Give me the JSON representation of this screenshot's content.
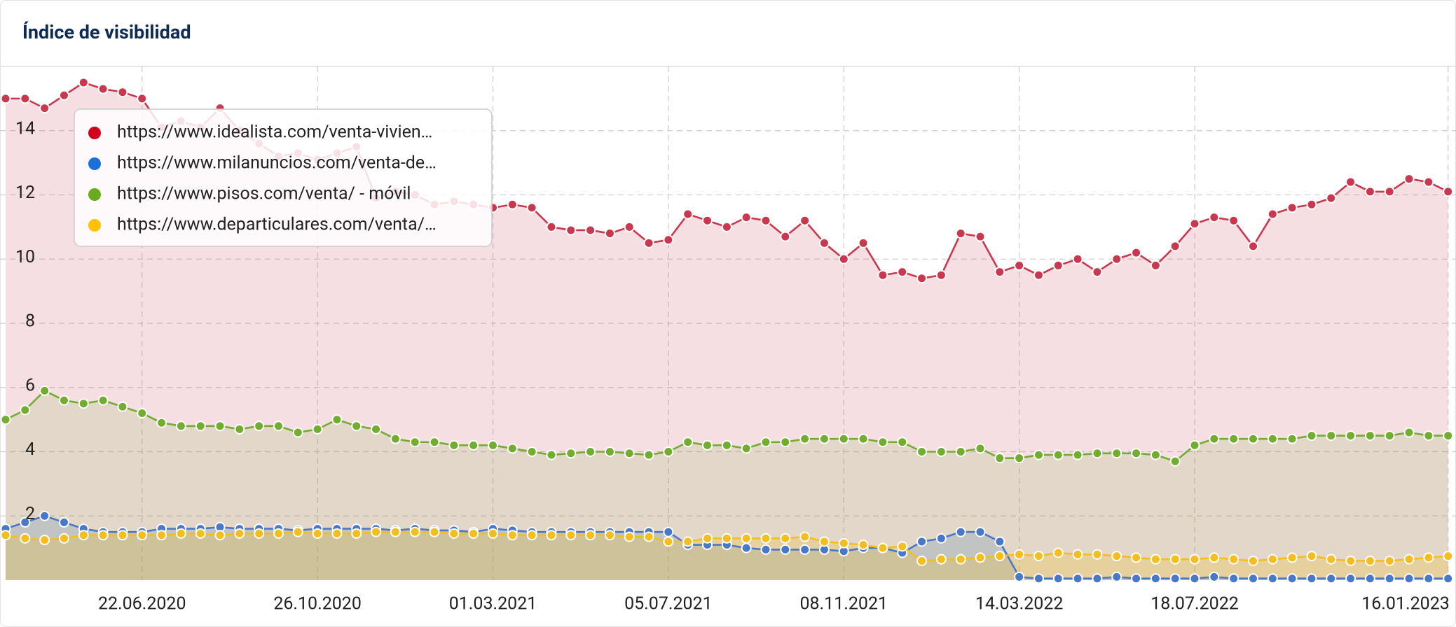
{
  "chart_data": {
    "type": "line",
    "title": "Índice de visibilidad",
    "area": true,
    "markers": true,
    "grid": true,
    "legend": "top-left",
    "categories": [
      null,
      null,
      null,
      null,
      null,
      null,
      null,
      "22.06.2020",
      null,
      null,
      null,
      null,
      null,
      null,
      null,
      null,
      "26.10.2020",
      null,
      null,
      null,
      null,
      null,
      null,
      null,
      null,
      "01.03.2021",
      null,
      null,
      null,
      null,
      null,
      null,
      null,
      null,
      "05.07.2021",
      null,
      null,
      null,
      null,
      null,
      null,
      null,
      null,
      "08.11.2021",
      null,
      null,
      null,
      null,
      null,
      null,
      null,
      null,
      "14.03.2022",
      null,
      null,
      null,
      null,
      null,
      null,
      null,
      null,
      "18.07.2022",
      null,
      null,
      null,
      null,
      null,
      null,
      null,
      null,
      null,
      null,
      null,
      null,
      "16.01.2023"
    ],
    "ylim": [
      0,
      16
    ],
    "yticks": [
      2,
      4,
      6,
      8,
      10,
      12,
      14
    ],
    "series": [
      {
        "name": "https://www.idealista.com/venta-vivien…",
        "color": "#c9384f",
        "values": [
          15.0,
          15.0,
          14.7,
          15.1,
          15.5,
          15.3,
          15.2,
          15.0,
          14.1,
          14.3,
          14.1,
          14.7,
          14.0,
          13.6,
          13.2,
          13.3,
          13.1,
          13.3,
          13.5,
          11.9,
          12.1,
          12.0,
          11.7,
          11.8,
          11.7,
          11.6,
          11.7,
          11.6,
          11.0,
          10.9,
          10.9,
          10.8,
          11.0,
          10.5,
          10.6,
          11.4,
          11.2,
          11.0,
          11.3,
          11.2,
          10.7,
          11.2,
          10.5,
          10.0,
          10.5,
          9.5,
          9.6,
          9.4,
          9.5,
          10.8,
          10.7,
          9.6,
          9.8,
          9.5,
          9.8,
          10.0,
          9.6,
          10.0,
          10.2,
          9.8,
          10.4,
          11.1,
          11.3,
          11.2,
          10.4,
          11.4,
          11.6,
          11.7,
          11.9,
          12.4,
          12.1,
          12.1,
          12.5,
          12.4,
          12.1
        ]
      },
      {
        "name": "https://www.milanuncios.com/venta-de…",
        "color": "#4a78c8",
        "values": [
          1.6,
          1.8,
          2.0,
          1.8,
          1.6,
          1.5,
          1.5,
          1.5,
          1.6,
          1.6,
          1.6,
          1.65,
          1.6,
          1.6,
          1.6,
          1.55,
          1.6,
          1.6,
          1.6,
          1.6,
          1.55,
          1.6,
          1.55,
          1.55,
          1.5,
          1.6,
          1.55,
          1.5,
          1.5,
          1.5,
          1.5,
          1.5,
          1.5,
          1.5,
          1.5,
          1.1,
          1.1,
          1.1,
          1.0,
          0.95,
          0.95,
          0.95,
          0.95,
          0.9,
          1.0,
          1.0,
          0.85,
          1.2,
          1.3,
          1.5,
          1.5,
          1.2,
          0.1,
          0.05,
          0.05,
          0.05,
          0.05,
          0.1,
          0.05,
          0.05,
          0.05,
          0.05,
          0.1,
          0.05,
          0.05,
          0.05,
          0.05,
          0.05,
          0.05,
          0.05,
          0.05,
          0.05,
          0.05,
          0.05,
          0.05
        ]
      },
      {
        "name": "https://www.pisos.com/venta/ - móvil",
        "color": "#72ad2f",
        "values": [
          5.0,
          5.3,
          5.9,
          5.6,
          5.5,
          5.6,
          5.4,
          5.2,
          4.9,
          4.8,
          4.8,
          4.8,
          4.7,
          4.8,
          4.8,
          4.6,
          4.7,
          5.0,
          4.8,
          4.7,
          4.4,
          4.3,
          4.3,
          4.2,
          4.2,
          4.2,
          4.1,
          4.0,
          3.9,
          3.95,
          4.0,
          4.0,
          3.95,
          3.9,
          4.0,
          4.3,
          4.2,
          4.2,
          4.1,
          4.3,
          4.3,
          4.4,
          4.4,
          4.4,
          4.4,
          4.3,
          4.3,
          4.0,
          4.0,
          4.0,
          4.1,
          3.8,
          3.8,
          3.9,
          3.9,
          3.9,
          3.95,
          3.95,
          3.95,
          3.9,
          3.7,
          4.2,
          4.4,
          4.4,
          4.4,
          4.4,
          4.4,
          4.5,
          4.5,
          4.5,
          4.5,
          4.5,
          4.6,
          4.5,
          4.5
        ]
      },
      {
        "name": "https://www.departiculares.com/venta/…",
        "color": "#f5bd1e",
        "values": [
          1.4,
          1.3,
          1.25,
          1.3,
          1.4,
          1.4,
          1.4,
          1.4,
          1.4,
          1.45,
          1.45,
          1.4,
          1.45,
          1.45,
          1.45,
          1.5,
          1.45,
          1.45,
          1.45,
          1.5,
          1.5,
          1.5,
          1.5,
          1.45,
          1.45,
          1.45,
          1.4,
          1.4,
          1.4,
          1.4,
          1.4,
          1.4,
          1.35,
          1.35,
          1.2,
          1.2,
          1.3,
          1.3,
          1.3,
          1.3,
          1.3,
          1.35,
          1.2,
          1.15,
          1.1,
          1.0,
          1.05,
          0.6,
          0.65,
          0.65,
          0.7,
          0.75,
          0.8,
          0.75,
          0.85,
          0.8,
          0.8,
          0.75,
          0.7,
          0.65,
          0.65,
          0.65,
          0.7,
          0.65,
          0.6,
          0.65,
          0.7,
          0.75,
          0.65,
          0.6,
          0.6,
          0.6,
          0.65,
          0.7,
          0.75
        ]
      }
    ]
  }
}
